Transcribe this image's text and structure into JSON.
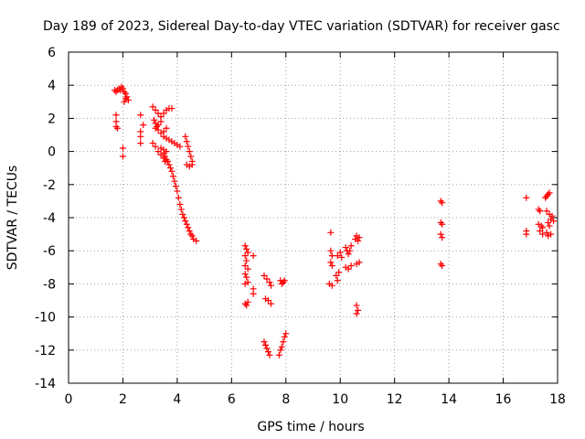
{
  "chart_data": {
    "type": "scatter",
    "title": "Day 189 of 2023, Sidereal Day-to-day VTEC variation (SDTVAR) for receiver gasc",
    "xlabel": "GPS time / hours",
    "ylabel": "SDTVAR / TECUs",
    "xlim": [
      0,
      18
    ],
    "ylim": [
      -14,
      6
    ],
    "xticks": [
      0,
      2,
      4,
      6,
      8,
      10,
      12,
      14,
      16,
      18
    ],
    "yticks": [
      6,
      4,
      2,
      0,
      -2,
      -4,
      -6,
      -8,
      -10,
      -12,
      -14
    ],
    "grid": true,
    "marker": "plus",
    "color": "#ff0000",
    "series": [
      {
        "name": "SDTVAR",
        "points": [
          [
            1.7,
            3.7
          ],
          [
            1.75,
            3.6
          ],
          [
            1.8,
            3.7
          ],
          [
            1.85,
            3.8
          ],
          [
            1.9,
            3.7
          ],
          [
            1.95,
            3.9
          ],
          [
            2.0,
            3.8
          ],
          [
            2.05,
            3.6
          ],
          [
            2.1,
            3.5
          ],
          [
            2.15,
            3.3
          ],
          [
            2.2,
            3.1
          ],
          [
            2.1,
            3.2
          ],
          [
            2.05,
            3.0
          ],
          [
            1.75,
            2.2
          ],
          [
            1.75,
            1.8
          ],
          [
            1.75,
            1.5
          ],
          [
            1.8,
            1.4
          ],
          [
            2.0,
            0.2
          ],
          [
            2.0,
            -0.3
          ],
          [
            2.65,
            2.2
          ],
          [
            2.65,
            1.2
          ],
          [
            2.65,
            0.9
          ],
          [
            2.65,
            0.5
          ],
          [
            2.75,
            1.6
          ],
          [
            3.1,
            2.7
          ],
          [
            3.2,
            2.5
          ],
          [
            3.3,
            2.3
          ],
          [
            3.4,
            2.1
          ],
          [
            3.5,
            2.3
          ],
          [
            3.6,
            2.5
          ],
          [
            3.7,
            2.6
          ],
          [
            3.8,
            2.6
          ],
          [
            3.15,
            1.9
          ],
          [
            3.2,
            1.7
          ],
          [
            3.25,
            1.5
          ],
          [
            3.3,
            1.3
          ],
          [
            3.4,
            1.1
          ],
          [
            3.5,
            0.9
          ],
          [
            3.6,
            0.8
          ],
          [
            3.7,
            0.7
          ],
          [
            3.8,
            0.6
          ],
          [
            3.9,
            0.5
          ],
          [
            4.0,
            0.4
          ],
          [
            4.1,
            0.3
          ],
          [
            3.2,
            1.4
          ],
          [
            3.3,
            1.6
          ],
          [
            3.4,
            1.8
          ],
          [
            3.5,
            1.2
          ],
          [
            3.6,
            1.4
          ],
          [
            3.4,
            0.2
          ],
          [
            3.5,
            0.1
          ],
          [
            3.6,
            0.0
          ],
          [
            3.1,
            0.5
          ],
          [
            3.2,
            0.3
          ],
          [
            3.3,
            0.0
          ],
          [
            3.4,
            -0.2
          ],
          [
            3.5,
            -0.4
          ],
          [
            3.55,
            -0.6
          ],
          [
            3.5,
            -0.1
          ],
          [
            3.55,
            -0.3
          ],
          [
            3.6,
            -0.5
          ],
          [
            3.65,
            -0.6
          ],
          [
            3.7,
            -0.8
          ],
          [
            3.75,
            -1.0
          ],
          [
            3.8,
            -1.2
          ],
          [
            3.85,
            -1.5
          ],
          [
            3.9,
            -1.8
          ],
          [
            3.95,
            -2.1
          ],
          [
            4.0,
            -2.4
          ],
          [
            4.05,
            -2.8
          ],
          [
            4.1,
            -3.2
          ],
          [
            4.15,
            -3.5
          ],
          [
            4.2,
            -3.8
          ],
          [
            4.25,
            -4.0
          ],
          [
            4.3,
            -4.2
          ],
          [
            4.35,
            -4.4
          ],
          [
            4.4,
            -4.6
          ],
          [
            4.45,
            -4.8
          ],
          [
            4.5,
            -5.0
          ],
          [
            4.55,
            -5.1
          ],
          [
            4.6,
            -5.3
          ],
          [
            4.7,
            -5.4
          ],
          [
            4.3,
            0.9
          ],
          [
            4.35,
            0.6
          ],
          [
            4.4,
            0.3
          ],
          [
            4.45,
            0.0
          ],
          [
            4.5,
            -0.3
          ],
          [
            4.55,
            -0.6
          ],
          [
            4.35,
            -0.8
          ],
          [
            4.45,
            -0.9
          ],
          [
            4.55,
            -0.8
          ],
          [
            6.5,
            -5.7
          ],
          [
            6.55,
            -5.9
          ],
          [
            6.6,
            -6.1
          ],
          [
            6.5,
            -6.3
          ],
          [
            6.55,
            -6.6
          ],
          [
            6.5,
            -6.9
          ],
          [
            6.6,
            -7.1
          ],
          [
            6.5,
            -7.4
          ],
          [
            6.55,
            -7.6
          ],
          [
            6.6,
            -7.9
          ],
          [
            6.5,
            -8.0
          ],
          [
            6.8,
            -6.3
          ],
          [
            6.8,
            -8.3
          ],
          [
            6.8,
            -8.6
          ],
          [
            6.5,
            -9.2
          ],
          [
            6.55,
            -9.3
          ],
          [
            6.6,
            -9.1
          ],
          [
            7.2,
            -7.5
          ],
          [
            7.3,
            -7.7
          ],
          [
            7.4,
            -7.9
          ],
          [
            7.45,
            -8.1
          ],
          [
            7.25,
            -8.9
          ],
          [
            7.35,
            -9.0
          ],
          [
            7.45,
            -9.2
          ],
          [
            7.2,
            -11.5
          ],
          [
            7.25,
            -11.7
          ],
          [
            7.3,
            -11.9
          ],
          [
            7.35,
            -12.1
          ],
          [
            7.4,
            -12.3
          ],
          [
            7.8,
            -7.8
          ],
          [
            7.85,
            -8.0
          ],
          [
            7.9,
            -7.9
          ],
          [
            7.95,
            -7.8
          ],
          [
            7.75,
            -12.3
          ],
          [
            7.8,
            -12.0
          ],
          [
            7.85,
            -11.8
          ],
          [
            7.9,
            -11.5
          ],
          [
            7.95,
            -11.2
          ],
          [
            8.0,
            -11.0
          ],
          [
            9.65,
            -4.9
          ],
          [
            9.65,
            -6.0
          ],
          [
            9.7,
            -6.3
          ],
          [
            9.65,
            -6.7
          ],
          [
            9.7,
            -6.9
          ],
          [
            9.6,
            -8.0
          ],
          [
            9.7,
            -8.1
          ],
          [
            9.9,
            -7.8
          ],
          [
            9.85,
            -7.5
          ],
          [
            9.95,
            -7.3
          ],
          [
            9.9,
            -6.3
          ],
          [
            10.0,
            -6.1
          ],
          [
            10.05,
            -6.4
          ],
          [
            10.2,
            -5.8
          ],
          [
            10.25,
            -6.0
          ],
          [
            10.3,
            -6.2
          ],
          [
            10.35,
            -6.0
          ],
          [
            10.4,
            -5.7
          ],
          [
            10.2,
            -7.0
          ],
          [
            10.3,
            -7.1
          ],
          [
            10.4,
            -6.9
          ],
          [
            10.55,
            -5.3
          ],
          [
            10.6,
            -5.1
          ],
          [
            10.65,
            -5.4
          ],
          [
            10.7,
            -5.2
          ],
          [
            10.6,
            -6.8
          ],
          [
            10.7,
            -6.7
          ],
          [
            10.6,
            -9.3
          ],
          [
            10.65,
            -9.6
          ],
          [
            10.6,
            -9.8
          ],
          [
            13.7,
            -3.0
          ],
          [
            13.75,
            -3.1
          ],
          [
            13.7,
            -4.3
          ],
          [
            13.75,
            -4.4
          ],
          [
            13.7,
            -5.0
          ],
          [
            13.75,
            -5.2
          ],
          [
            13.7,
            -6.8
          ],
          [
            13.75,
            -6.9
          ],
          [
            16.85,
            -2.8
          ],
          [
            16.85,
            -4.8
          ],
          [
            16.85,
            -5.0
          ],
          [
            17.3,
            -3.5
          ],
          [
            17.35,
            -3.6
          ],
          [
            17.3,
            -4.4
          ],
          [
            17.4,
            -4.5
          ],
          [
            17.45,
            -4.6
          ],
          [
            17.35,
            -4.8
          ],
          [
            17.45,
            -5.0
          ],
          [
            17.55,
            -2.8
          ],
          [
            17.6,
            -2.7
          ],
          [
            17.65,
            -2.6
          ],
          [
            17.7,
            -2.5
          ],
          [
            17.6,
            -3.6
          ],
          [
            17.7,
            -3.8
          ],
          [
            17.75,
            -4.1
          ],
          [
            17.8,
            -3.9
          ],
          [
            17.85,
            -4.2
          ],
          [
            17.65,
            -4.3
          ],
          [
            17.7,
            -4.5
          ],
          [
            17.6,
            -4.9
          ],
          [
            17.65,
            -5.1
          ],
          [
            17.75,
            -5.0
          ]
        ]
      }
    ]
  }
}
